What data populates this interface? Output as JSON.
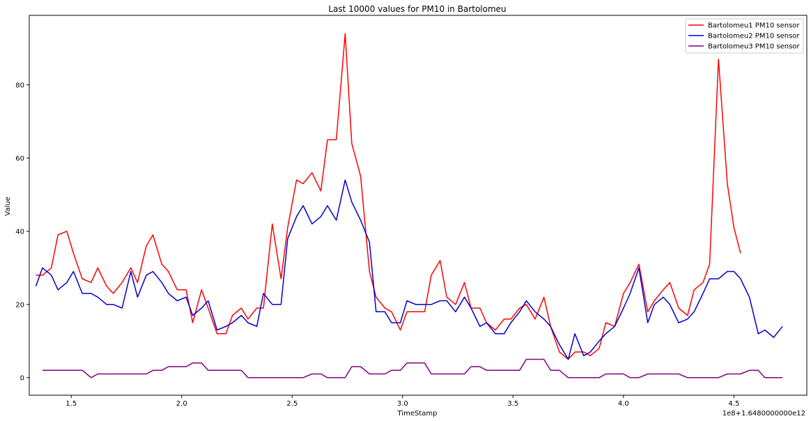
{
  "chart_data": {
    "type": "line",
    "title": "Last 10000 values for PM10 in Bartolomeu",
    "xlabel": "TimeStamp",
    "ylabel": "Value",
    "x_offset_label": "1e8+1.6480000000e12",
    "xlim": [
      1.31,
      4.83
    ],
    "ylim": [
      -4.8,
      99
    ],
    "x_ticks": [
      1.5,
      2.0,
      2.5,
      3.0,
      3.5,
      4.0,
      4.5
    ],
    "x_tick_labels": [
      "1.5",
      "2.0",
      "2.5",
      "3.0",
      "3.5",
      "4.0",
      "4.5"
    ],
    "y_ticks": [
      0,
      20,
      40,
      60,
      80
    ],
    "y_tick_labels": [
      "0",
      "20",
      "40",
      "60",
      "80"
    ],
    "grid": false,
    "legend_position": "top-right",
    "series": [
      {
        "name": "Bartolomeu1 PM10 sensor",
        "color": "#ff0000",
        "points": [
          [
            1.34,
            28
          ],
          [
            1.37,
            28
          ],
          [
            1.41,
            30
          ],
          [
            1.44,
            39
          ],
          [
            1.48,
            40
          ],
          [
            1.51,
            34
          ],
          [
            1.55,
            27
          ],
          [
            1.59,
            26
          ],
          [
            1.62,
            30
          ],
          [
            1.66,
            25
          ],
          [
            1.69,
            23
          ],
          [
            1.73,
            26
          ],
          [
            1.77,
            30
          ],
          [
            1.8,
            26
          ],
          [
            1.84,
            36
          ],
          [
            1.87,
            39
          ],
          [
            1.91,
            31
          ],
          [
            1.94,
            29
          ],
          [
            1.98,
            24
          ],
          [
            2.02,
            24
          ],
          [
            2.05,
            15
          ],
          [
            2.09,
            24
          ],
          [
            2.12,
            19
          ],
          [
            2.16,
            12
          ],
          [
            2.2,
            12
          ],
          [
            2.23,
            17
          ],
          [
            2.27,
            19
          ],
          [
            2.3,
            16
          ],
          [
            2.34,
            19
          ],
          [
            2.37,
            19
          ],
          [
            2.41,
            42
          ],
          [
            2.45,
            27
          ],
          [
            2.48,
            41
          ],
          [
            2.52,
            54
          ],
          [
            2.55,
            53
          ],
          [
            2.59,
            56
          ],
          [
            2.63,
            51
          ],
          [
            2.66,
            65
          ],
          [
            2.7,
            65
          ],
          [
            2.74,
            94
          ],
          [
            2.77,
            64
          ],
          [
            2.81,
            55
          ],
          [
            2.85,
            29
          ],
          [
            2.88,
            22
          ],
          [
            2.92,
            19
          ],
          [
            2.95,
            18
          ],
          [
            2.99,
            13
          ],
          [
            3.02,
            18
          ],
          [
            3.06,
            18
          ],
          [
            3.1,
            18
          ],
          [
            3.13,
            28
          ],
          [
            3.17,
            32
          ],
          [
            3.2,
            22
          ],
          [
            3.24,
            20
          ],
          [
            3.28,
            26
          ],
          [
            3.31,
            19
          ],
          [
            3.35,
            19
          ],
          [
            3.38,
            15
          ],
          [
            3.42,
            13
          ],
          [
            3.46,
            16
          ],
          [
            3.49,
            16
          ],
          [
            3.53,
            19
          ],
          [
            3.56,
            20
          ],
          [
            3.6,
            16
          ],
          [
            3.64,
            22
          ],
          [
            3.67,
            14
          ],
          [
            3.71,
            7
          ],
          [
            3.75,
            5
          ],
          [
            3.78,
            7
          ],
          [
            3.82,
            7
          ],
          [
            3.85,
            6
          ],
          [
            3.89,
            8
          ],
          [
            3.92,
            15
          ],
          [
            3.96,
            14
          ],
          [
            4.0,
            23
          ],
          [
            4.03,
            26
          ],
          [
            4.07,
            31
          ],
          [
            4.11,
            18
          ],
          [
            4.14,
            21
          ],
          [
            4.18,
            24
          ],
          [
            4.21,
            26
          ],
          [
            4.25,
            19
          ],
          [
            4.29,
            17
          ],
          [
            4.32,
            24
          ],
          [
            4.36,
            26
          ],
          [
            4.39,
            31
          ],
          [
            4.43,
            87
          ],
          [
            4.47,
            53
          ],
          [
            4.5,
            41
          ],
          [
            4.53,
            34
          ]
        ]
      },
      {
        "name": "Bartolomeu2 PM10 sensor",
        "color": "#0000cd",
        "points": [
          [
            1.34,
            25
          ],
          [
            1.37,
            30
          ],
          [
            1.41,
            28
          ],
          [
            1.44,
            24
          ],
          [
            1.48,
            26
          ],
          [
            1.51,
            29
          ],
          [
            1.55,
            23
          ],
          [
            1.59,
            23
          ],
          [
            1.62,
            22
          ],
          [
            1.66,
            20
          ],
          [
            1.69,
            20
          ],
          [
            1.73,
            19
          ],
          [
            1.77,
            29
          ],
          [
            1.8,
            22
          ],
          [
            1.84,
            28
          ],
          [
            1.87,
            29
          ],
          [
            1.91,
            26
          ],
          [
            1.94,
            23
          ],
          [
            1.98,
            21
          ],
          [
            2.02,
            22
          ],
          [
            2.05,
            17
          ],
          [
            2.09,
            19
          ],
          [
            2.12,
            21
          ],
          [
            2.16,
            13
          ],
          [
            2.2,
            14
          ],
          [
            2.23,
            15
          ],
          [
            2.27,
            17
          ],
          [
            2.3,
            15
          ],
          [
            2.34,
            14
          ],
          [
            2.37,
            23
          ],
          [
            2.41,
            20
          ],
          [
            2.45,
            20
          ],
          [
            2.48,
            38
          ],
          [
            2.52,
            44
          ],
          [
            2.55,
            47
          ],
          [
            2.59,
            42
          ],
          [
            2.63,
            44
          ],
          [
            2.66,
            47
          ],
          [
            2.7,
            43
          ],
          [
            2.74,
            54
          ],
          [
            2.77,
            48
          ],
          [
            2.81,
            43
          ],
          [
            2.85,
            37
          ],
          [
            2.88,
            18
          ],
          [
            2.92,
            18
          ],
          [
            2.95,
            15
          ],
          [
            2.99,
            15
          ],
          [
            3.02,
            21
          ],
          [
            3.06,
            20
          ],
          [
            3.1,
            20
          ],
          [
            3.13,
            20
          ],
          [
            3.17,
            21
          ],
          [
            3.2,
            21
          ],
          [
            3.24,
            18
          ],
          [
            3.28,
            22
          ],
          [
            3.31,
            19
          ],
          [
            3.35,
            14
          ],
          [
            3.38,
            15
          ],
          [
            3.42,
            12
          ],
          [
            3.46,
            12
          ],
          [
            3.49,
            15
          ],
          [
            3.53,
            18
          ],
          [
            3.56,
            21
          ],
          [
            3.6,
            18
          ],
          [
            3.64,
            16
          ],
          [
            3.67,
            14
          ],
          [
            3.71,
            9
          ],
          [
            3.75,
            5
          ],
          [
            3.78,
            12
          ],
          [
            3.82,
            6
          ],
          [
            3.85,
            7
          ],
          [
            3.89,
            10
          ],
          [
            3.92,
            12
          ],
          [
            3.96,
            14
          ],
          [
            4.0,
            19
          ],
          [
            4.03,
            23
          ],
          [
            4.07,
            30
          ],
          [
            4.11,
            15
          ],
          [
            4.14,
            20
          ],
          [
            4.18,
            22
          ],
          [
            4.21,
            20
          ],
          [
            4.25,
            15
          ],
          [
            4.29,
            16
          ],
          [
            4.32,
            18
          ],
          [
            4.36,
            23
          ],
          [
            4.39,
            27
          ],
          [
            4.43,
            27
          ],
          [
            4.47,
            29
          ],
          [
            4.5,
            29
          ],
          [
            4.53,
            27
          ],
          [
            4.57,
            22
          ],
          [
            4.61,
            12
          ],
          [
            4.64,
            13
          ],
          [
            4.68,
            11
          ],
          [
            4.72,
            14
          ]
        ]
      },
      {
        "name": "Bartolomeu3 PM10 sensor",
        "color": "#800080",
        "points": [
          [
            1.37,
            2
          ],
          [
            1.41,
            2
          ],
          [
            1.44,
            2
          ],
          [
            1.48,
            2
          ],
          [
            1.51,
            2
          ],
          [
            1.55,
            2
          ],
          [
            1.59,
            0
          ],
          [
            1.62,
            1
          ],
          [
            1.66,
            1
          ],
          [
            1.69,
            1
          ],
          [
            1.73,
            1
          ],
          [
            1.77,
            1
          ],
          [
            1.8,
            1
          ],
          [
            1.84,
            1
          ],
          [
            1.87,
            2
          ],
          [
            1.91,
            2
          ],
          [
            1.94,
            3
          ],
          [
            1.98,
            3
          ],
          [
            2.02,
            3
          ],
          [
            2.05,
            4
          ],
          [
            2.09,
            4
          ],
          [
            2.12,
            2
          ],
          [
            2.16,
            2
          ],
          [
            2.2,
            2
          ],
          [
            2.23,
            2
          ],
          [
            2.27,
            2
          ],
          [
            2.3,
            0
          ],
          [
            2.34,
            0
          ],
          [
            2.37,
            0
          ],
          [
            2.41,
            0
          ],
          [
            2.45,
            0
          ],
          [
            2.48,
            0
          ],
          [
            2.52,
            0
          ],
          [
            2.55,
            0
          ],
          [
            2.59,
            1
          ],
          [
            2.63,
            1
          ],
          [
            2.66,
            0
          ],
          [
            2.7,
            0
          ],
          [
            2.74,
            0
          ],
          [
            2.77,
            3
          ],
          [
            2.81,
            3
          ],
          [
            2.85,
            1
          ],
          [
            2.88,
            1
          ],
          [
            2.92,
            1
          ],
          [
            2.95,
            2
          ],
          [
            2.99,
            2
          ],
          [
            3.02,
            4
          ],
          [
            3.06,
            4
          ],
          [
            3.1,
            4
          ],
          [
            3.13,
            1
          ],
          [
            3.17,
            1
          ],
          [
            3.2,
            1
          ],
          [
            3.24,
            1
          ],
          [
            3.28,
            1
          ],
          [
            3.31,
            3
          ],
          [
            3.35,
            3
          ],
          [
            3.38,
            2
          ],
          [
            3.42,
            2
          ],
          [
            3.46,
            2
          ],
          [
            3.49,
            2
          ],
          [
            3.53,
            2
          ],
          [
            3.56,
            5
          ],
          [
            3.6,
            5
          ],
          [
            3.64,
            5
          ],
          [
            3.67,
            2
          ],
          [
            3.71,
            2
          ],
          [
            3.75,
            0
          ],
          [
            3.78,
            0
          ],
          [
            3.82,
            0
          ],
          [
            3.85,
            0
          ],
          [
            3.89,
            0
          ],
          [
            3.92,
            1
          ],
          [
            3.96,
            1
          ],
          [
            4.0,
            1
          ],
          [
            4.03,
            0
          ],
          [
            4.07,
            0
          ],
          [
            4.11,
            1
          ],
          [
            4.14,
            1
          ],
          [
            4.18,
            1
          ],
          [
            4.21,
            1
          ],
          [
            4.25,
            1
          ],
          [
            4.29,
            0
          ],
          [
            4.32,
            0
          ],
          [
            4.36,
            0
          ],
          [
            4.39,
            0
          ],
          [
            4.43,
            0
          ],
          [
            4.47,
            1
          ],
          [
            4.5,
            1
          ],
          [
            4.53,
            1
          ],
          [
            4.57,
            2
          ],
          [
            4.61,
            2
          ],
          [
            4.64,
            0
          ],
          [
            4.68,
            0
          ],
          [
            4.72,
            0
          ]
        ]
      }
    ]
  }
}
